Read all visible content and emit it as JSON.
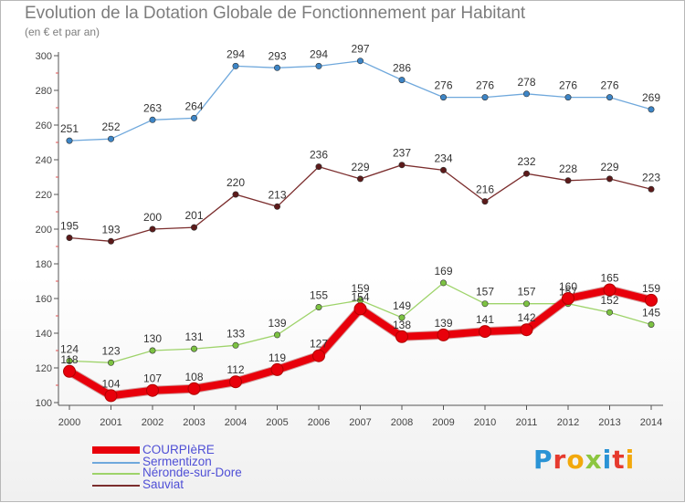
{
  "header": {
    "title": "Evolution de la Dotation Globale de Fonctionnement par Habitant",
    "subtitle": "(en € et par an)"
  },
  "branding": {
    "logo_text": "Proxiti",
    "logo_colors": [
      "#2a93d5",
      "#e63a2e",
      "#f2a80b",
      "#8cc63f",
      "#2a93d5",
      "#e63a2e",
      "#f2a80b"
    ]
  },
  "chart_data": {
    "type": "line",
    "title": "Evolution de la Dotation Globale de Fonctionnement par Habitant",
    "subtitle": "(en € et par an)",
    "xlabel": "",
    "ylabel": "",
    "ylim": [
      100,
      300
    ],
    "ytick_step": 20,
    "grid": false,
    "legend_position": "bottom-left",
    "categories": [
      "2000",
      "2001",
      "2002",
      "2003",
      "2004",
      "2005",
      "2006",
      "2007",
      "2008",
      "2009",
      "2010",
      "2011",
      "2012",
      "2013",
      "2014"
    ],
    "series": [
      {
        "name": "COURPIèRE",
        "color": "#e8000b",
        "emphasis": true,
        "values": [
          118,
          104,
          107,
          108,
          112,
          119,
          127,
          154,
          138,
          139,
          141,
          142,
          160,
          165,
          159
        ]
      },
      {
        "name": "Sermentizon",
        "color": "#6fa8dc",
        "marker": "#3d85c6",
        "values": [
          251,
          252,
          263,
          264,
          294,
          293,
          294,
          297,
          286,
          276,
          276,
          278,
          276,
          276,
          269
        ]
      },
      {
        "name": "Néronde-sur-Dore",
        "color": "#9ed36a",
        "marker": "#7cc242",
        "values": [
          124,
          123,
          130,
          131,
          133,
          139,
          155,
          159,
          149,
          169,
          157,
          157,
          157,
          152,
          145
        ]
      },
      {
        "name": "Sauviat",
        "color": "#7b2d2d",
        "marker": "#5c1a1a",
        "values": [
          195,
          193,
          200,
          201,
          220,
          213,
          236,
          229,
          237,
          234,
          216,
          232,
          228,
          229,
          223
        ]
      }
    ]
  }
}
